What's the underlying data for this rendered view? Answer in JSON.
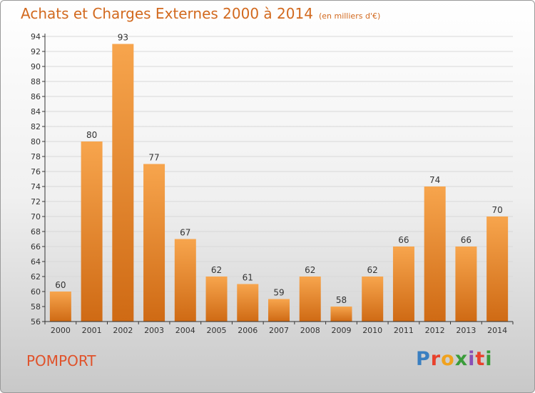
{
  "header": {
    "title": "Achats et Charges Externes 2000 à 2014",
    "subtitle": "(en milliers d'€)"
  },
  "footer": {
    "commune": "POMPORT",
    "logo_text": "Proxiti",
    "logo_colors": [
      "#3a7fc1",
      "#e8412c",
      "#f0a21e",
      "#3a9c3a",
      "#8a4fb5",
      "#e8412c",
      "#3a9c3a"
    ]
  },
  "colors": {
    "bar_top": "#f7a54d",
    "bar_bottom": "#cf6a14",
    "axis": "#333333",
    "grid": "#d8d8d8"
  },
  "chart_data": {
    "type": "bar",
    "categories": [
      "2000",
      "2001",
      "2002",
      "2003",
      "2004",
      "2005",
      "2006",
      "2007",
      "2008",
      "2009",
      "2010",
      "2011",
      "2012",
      "2013",
      "2014"
    ],
    "values": [
      60,
      80,
      93,
      77,
      67,
      62,
      61,
      59,
      62,
      58,
      62,
      66,
      74,
      66,
      70
    ],
    "ylim": [
      56,
      94
    ],
    "yticks": [
      56,
      58,
      60,
      62,
      64,
      66,
      68,
      70,
      72,
      74,
      76,
      78,
      80,
      82,
      84,
      86,
      88,
      90,
      92,
      94
    ],
    "grid": true
  }
}
